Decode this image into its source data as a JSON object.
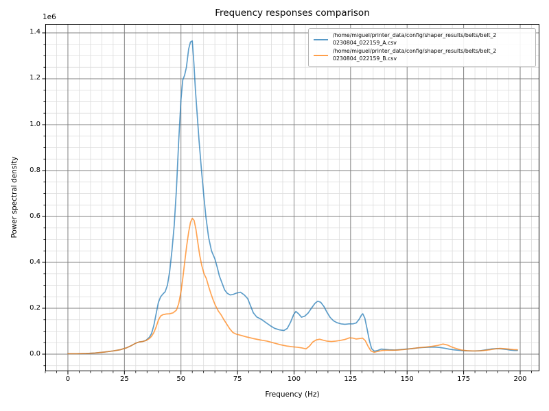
{
  "chart_data": {
    "type": "line",
    "title": "Frequency responses comparison",
    "xlabel": "Frequency (Hz)",
    "ylabel": "Power spectral density",
    "y_offset_label": "1e6",
    "xlim": [
      -10,
      208.5
    ],
    "ylim": [
      -0.0746,
      1.4388
    ],
    "grid": "major-and-minor",
    "minor_step_x": 5,
    "minor_step_y": 0.05,
    "legend_position": "upper-right",
    "colors": {
      "series_a": "#1f77b4",
      "series_b": "#ff7f0e",
      "major_grid": "#808080",
      "minor_grid": "#dcdcdc",
      "spine": "#000000"
    },
    "x_ticks": [
      {
        "value": 0,
        "label": "0"
      },
      {
        "value": 25,
        "label": "25"
      },
      {
        "value": 50,
        "label": "50"
      },
      {
        "value": 75,
        "label": "75"
      },
      {
        "value": 100,
        "label": "100"
      },
      {
        "value": 125,
        "label": "125"
      },
      {
        "value": 150,
        "label": "150"
      },
      {
        "value": 175,
        "label": "175"
      },
      {
        "value": 200,
        "label": "200"
      }
    ],
    "y_ticks": [
      {
        "value": 0.0,
        "label": "0.0"
      },
      {
        "value": 0.2,
        "label": "0.2"
      },
      {
        "value": 0.4,
        "label": "0.4"
      },
      {
        "value": 0.6,
        "label": "0.6"
      },
      {
        "value": 0.8,
        "label": "0.8"
      },
      {
        "value": 1.0,
        "label": "1.0"
      },
      {
        "value": 1.2,
        "label": "1.2"
      },
      {
        "value": 1.4,
        "label": "1.4"
      }
    ],
    "legend": [
      {
        "line1": "/home/miguel/printer_data/config/shaper_results/belts/belt_2",
        "line2": "0230804_022159_A.csv"
      },
      {
        "line1": "/home/miguel/printer_data/config/shaper_results/belts/belt_2",
        "line2": "0230804_022159_B.csv"
      }
    ],
    "series": [
      {
        "name": "/home/miguel/printer_data/config/shaper_results/belts/belt_20230804_022159_A.csv",
        "color": "#1f77b4",
        "opacity": 0.72,
        "units": "1e6",
        "points": [
          [
            0,
            0.002
          ],
          [
            4,
            0.002
          ],
          [
            8,
            0.003
          ],
          [
            12,
            0.005
          ],
          [
            16,
            0.009
          ],
          [
            20,
            0.014
          ],
          [
            23,
            0.019
          ],
          [
            26,
            0.028
          ],
          [
            28,
            0.037
          ],
          [
            30,
            0.048
          ],
          [
            31.5,
            0.053
          ],
          [
            33,
            0.055
          ],
          [
            34.5,
            0.06
          ],
          [
            36,
            0.073
          ],
          [
            37,
            0.09
          ],
          [
            38,
            0.125
          ],
          [
            39,
            0.175
          ],
          [
            40,
            0.225
          ],
          [
            41,
            0.25
          ],
          [
            42,
            0.262
          ],
          [
            43,
            0.272
          ],
          [
            44,
            0.3
          ],
          [
            45,
            0.36
          ],
          [
            46,
            0.45
          ],
          [
            47,
            0.56
          ],
          [
            48,
            0.72
          ],
          [
            49,
            0.93
          ],
          [
            50,
            1.11
          ],
          [
            50.8,
            1.195
          ],
          [
            51.6,
            1.215
          ],
          [
            52.4,
            1.25
          ],
          [
            53.4,
            1.33
          ],
          [
            54.2,
            1.36
          ],
          [
            55,
            1.365
          ],
          [
            55.7,
            1.27
          ],
          [
            56.4,
            1.15
          ],
          [
            57.2,
            1.04
          ],
          [
            58,
            0.93
          ],
          [
            59,
            0.81
          ],
          [
            60,
            0.7
          ],
          [
            61,
            0.6
          ],
          [
            62.2,
            0.51
          ],
          [
            63.5,
            0.45
          ],
          [
            65,
            0.415
          ],
          [
            66,
            0.38
          ],
          [
            67,
            0.34
          ],
          [
            68,
            0.314
          ],
          [
            69.3,
            0.28
          ],
          [
            70.5,
            0.265
          ],
          [
            71.8,
            0.258
          ],
          [
            73,
            0.26
          ],
          [
            74.5,
            0.266
          ],
          [
            76.3,
            0.27
          ],
          [
            78,
            0.258
          ],
          [
            79.5,
            0.242
          ],
          [
            80.8,
            0.21
          ],
          [
            82,
            0.18
          ],
          [
            83.5,
            0.162
          ],
          [
            85.5,
            0.152
          ],
          [
            87.5,
            0.138
          ],
          [
            89.5,
            0.124
          ],
          [
            91.5,
            0.112
          ],
          [
            93.5,
            0.106
          ],
          [
            95.5,
            0.103
          ],
          [
            97,
            0.112
          ],
          [
            98.5,
            0.14
          ],
          [
            99.8,
            0.172
          ],
          [
            100.8,
            0.186
          ],
          [
            102,
            0.176
          ],
          [
            103.3,
            0.161
          ],
          [
            104.8,
            0.166
          ],
          [
            106.3,
            0.18
          ],
          [
            107.8,
            0.202
          ],
          [
            109.3,
            0.222
          ],
          [
            110.5,
            0.231
          ],
          [
            111.8,
            0.226
          ],
          [
            113.2,
            0.208
          ],
          [
            114.6,
            0.182
          ],
          [
            116,
            0.16
          ],
          [
            117.5,
            0.145
          ],
          [
            119,
            0.137
          ],
          [
            120.8,
            0.132
          ],
          [
            122.5,
            0.13
          ],
          [
            124.3,
            0.132
          ],
          [
            126,
            0.132
          ],
          [
            127.5,
            0.136
          ],
          [
            128.8,
            0.152
          ],
          [
            129.8,
            0.17
          ],
          [
            130.4,
            0.176
          ],
          [
            131.3,
            0.157
          ],
          [
            132.3,
            0.11
          ],
          [
            133.3,
            0.06
          ],
          [
            134.3,
            0.024
          ],
          [
            135.5,
            0.013
          ],
          [
            137,
            0.016
          ],
          [
            138.5,
            0.022
          ],
          [
            140,
            0.021
          ],
          [
            142,
            0.019
          ],
          [
            144.5,
            0.018
          ],
          [
            147,
            0.02
          ],
          [
            149.5,
            0.022
          ],
          [
            152,
            0.024
          ],
          [
            154.5,
            0.027
          ],
          [
            157,
            0.029
          ],
          [
            159.5,
            0.03
          ],
          [
            162,
            0.031
          ],
          [
            164.5,
            0.029
          ],
          [
            166.5,
            0.026
          ],
          [
            168.5,
            0.022
          ],
          [
            170.5,
            0.019
          ],
          [
            172.5,
            0.017
          ],
          [
            175,
            0.015
          ],
          [
            177.5,
            0.014
          ],
          [
            180,
            0.014
          ],
          [
            182.5,
            0.015
          ],
          [
            185,
            0.019
          ],
          [
            187.5,
            0.023
          ],
          [
            189.5,
            0.024
          ],
          [
            191.5,
            0.023
          ],
          [
            193.5,
            0.021
          ],
          [
            195.5,
            0.018
          ],
          [
            197.5,
            0.016
          ],
          [
            198.8,
            0.016
          ]
        ]
      },
      {
        "name": "/home/miguel/printer_data/config/shaper_results/belts/belt_20230804_022159_B.csv",
        "color": "#ff7f0e",
        "opacity": 0.72,
        "units": "1e6",
        "points": [
          [
            0,
            0.002
          ],
          [
            4,
            0.002
          ],
          [
            8,
            0.003
          ],
          [
            12,
            0.005
          ],
          [
            16,
            0.009
          ],
          [
            20,
            0.014
          ],
          [
            23,
            0.019
          ],
          [
            26,
            0.028
          ],
          [
            28,
            0.037
          ],
          [
            30,
            0.048
          ],
          [
            31.5,
            0.053
          ],
          [
            33,
            0.055
          ],
          [
            34.5,
            0.059
          ],
          [
            36,
            0.068
          ],
          [
            37,
            0.078
          ],
          [
            38,
            0.094
          ],
          [
            39,
            0.118
          ],
          [
            40,
            0.148
          ],
          [
            41,
            0.166
          ],
          [
            42,
            0.172
          ],
          [
            43.5,
            0.175
          ],
          [
            45,
            0.176
          ],
          [
            46.5,
            0.18
          ],
          [
            48,
            0.192
          ],
          [
            49,
            0.22
          ],
          [
            50,
            0.272
          ],
          [
            50.8,
            0.33
          ],
          [
            51.7,
            0.405
          ],
          [
            52.5,
            0.47
          ],
          [
            53.4,
            0.532
          ],
          [
            54.2,
            0.574
          ],
          [
            55,
            0.592
          ],
          [
            55.8,
            0.583
          ],
          [
            56.6,
            0.545
          ],
          [
            57.4,
            0.49
          ],
          [
            58.3,
            0.43
          ],
          [
            59.2,
            0.386
          ],
          [
            60.2,
            0.35
          ],
          [
            61.2,
            0.33
          ],
          [
            62.2,
            0.296
          ],
          [
            63.2,
            0.265
          ],
          [
            64.2,
            0.237
          ],
          [
            65.2,
            0.213
          ],
          [
            66.5,
            0.188
          ],
          [
            67.7,
            0.172
          ],
          [
            69,
            0.15
          ],
          [
            70.3,
            0.13
          ],
          [
            71.6,
            0.11
          ],
          [
            73,
            0.094
          ],
          [
            74.5,
            0.087
          ],
          [
            76.5,
            0.082
          ],
          [
            79,
            0.075
          ],
          [
            82,
            0.068
          ],
          [
            85,
            0.062
          ],
          [
            88,
            0.057
          ],
          [
            91,
            0.049
          ],
          [
            94,
            0.041
          ],
          [
            97,
            0.035
          ],
          [
            99.5,
            0.032
          ],
          [
            101.5,
            0.03
          ],
          [
            103.5,
            0.027
          ],
          [
            105.3,
            0.023
          ],
          [
            106.8,
            0.035
          ],
          [
            108.3,
            0.053
          ],
          [
            109.8,
            0.062
          ],
          [
            111.3,
            0.065
          ],
          [
            112.8,
            0.061
          ],
          [
            114.5,
            0.057
          ],
          [
            116.5,
            0.055
          ],
          [
            118.5,
            0.057
          ],
          [
            120.5,
            0.06
          ],
          [
            122.5,
            0.064
          ],
          [
            124.5,
            0.071
          ],
          [
            126,
            0.07
          ],
          [
            127.5,
            0.066
          ],
          [
            129,
            0.068
          ],
          [
            130.3,
            0.07
          ],
          [
            131.5,
            0.059
          ],
          [
            132.7,
            0.035
          ],
          [
            134,
            0.014
          ],
          [
            135.5,
            0.008
          ],
          [
            137,
            0.012
          ],
          [
            139,
            0.016
          ],
          [
            141,
            0.017
          ],
          [
            143.5,
            0.017
          ],
          [
            146,
            0.018
          ],
          [
            148.5,
            0.02
          ],
          [
            151,
            0.023
          ],
          [
            153.5,
            0.026
          ],
          [
            156,
            0.029
          ],
          [
            158.5,
            0.031
          ],
          [
            161,
            0.034
          ],
          [
            163.5,
            0.038
          ],
          [
            165.8,
            0.044
          ],
          [
            167.8,
            0.04
          ],
          [
            169.8,
            0.031
          ],
          [
            171.8,
            0.024
          ],
          [
            174,
            0.018
          ],
          [
            176.5,
            0.015
          ],
          [
            179,
            0.014
          ],
          [
            181.5,
            0.014
          ],
          [
            184,
            0.016
          ],
          [
            186.5,
            0.019
          ],
          [
            189,
            0.023
          ],
          [
            191,
            0.025
          ],
          [
            193,
            0.024
          ],
          [
            195,
            0.022
          ],
          [
            197,
            0.02
          ],
          [
            198.8,
            0.019
          ]
        ]
      }
    ]
  }
}
